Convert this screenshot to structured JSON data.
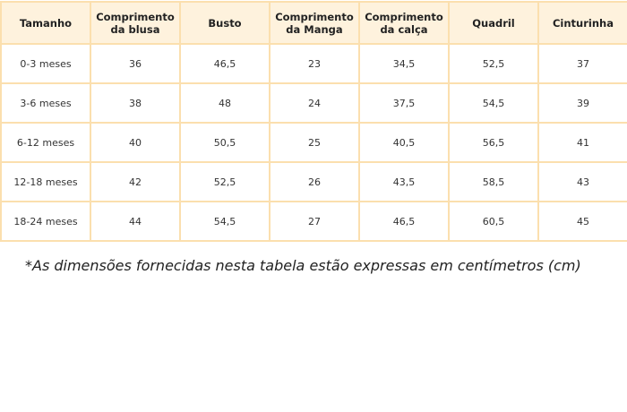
{
  "table": {
    "headers": [
      "Tamanho",
      "Comprimento da blusa",
      "Busto",
      "Comprimento da Manga",
      "Comprimento da calça",
      "Quadril",
      "Cinturinha"
    ],
    "rows": [
      [
        "0-3 meses",
        "36",
        "46,5",
        "23",
        "34,5",
        "52,5",
        "37"
      ],
      [
        "3-6 meses",
        "38",
        "48",
        "24",
        "37,5",
        "54,5",
        "39"
      ],
      [
        "6-12 meses",
        "40",
        "50,5",
        "25",
        "40,5",
        "56,5",
        "41"
      ],
      [
        "12-18 meses",
        "42",
        "52,5",
        "26",
        "43,5",
        "58,5",
        "43"
      ],
      [
        "18-24 meses",
        "44",
        "54,5",
        "27",
        "46,5",
        "60,5",
        "45"
      ]
    ]
  },
  "footnote": "*As dimensões fornecidas nesta tabela estão expressas em centímetros (cm)",
  "colors": {
    "border": "#fbdfae",
    "header_bg": "#fef2dd"
  }
}
